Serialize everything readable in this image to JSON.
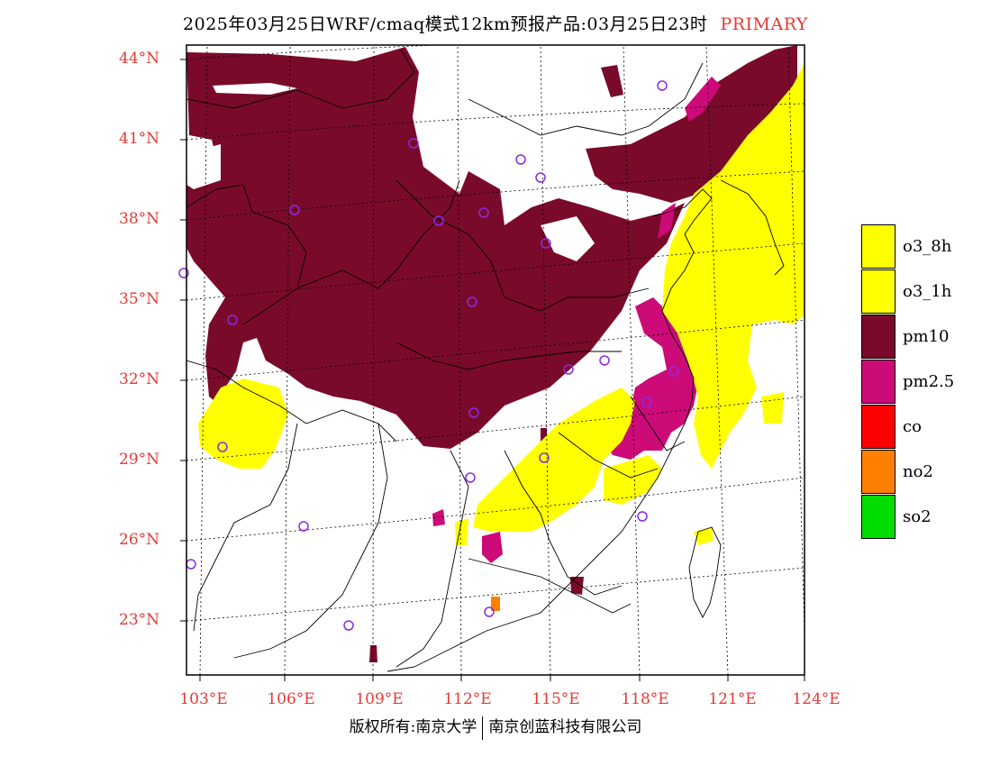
{
  "title": {
    "main": "2025年03月25日WRF/cmaq模式12km预报产品:03月25日23时",
    "tag": "PRIMARY"
  },
  "axes": {
    "lat_labels": [
      "44°N",
      "41°N",
      "38°N",
      "35°N",
      "32°N",
      "29°N",
      "26°N",
      "23°N"
    ],
    "lon_labels": [
      "103°E",
      "106°E",
      "109°E",
      "112°E",
      "115°E",
      "118°E",
      "121°E",
      "124°E"
    ]
  },
  "legend": [
    {
      "label": "o3_8h",
      "color": "#ffff00"
    },
    {
      "label": "o3_1h",
      "color": "#ffff00"
    },
    {
      "label": "pm10",
      "color": "#7a0a2a"
    },
    {
      "label": "pm2.5",
      "color": "#cc0a78"
    },
    {
      "label": "co",
      "color": "#ff0000"
    },
    {
      "label": "no2",
      "color": "#ff7f00"
    },
    {
      "label": "so2",
      "color": "#00dd00"
    }
  ],
  "footer": {
    "left": "版权所有:南京大学",
    "right": "南京创蓝科技有限公司"
  }
}
